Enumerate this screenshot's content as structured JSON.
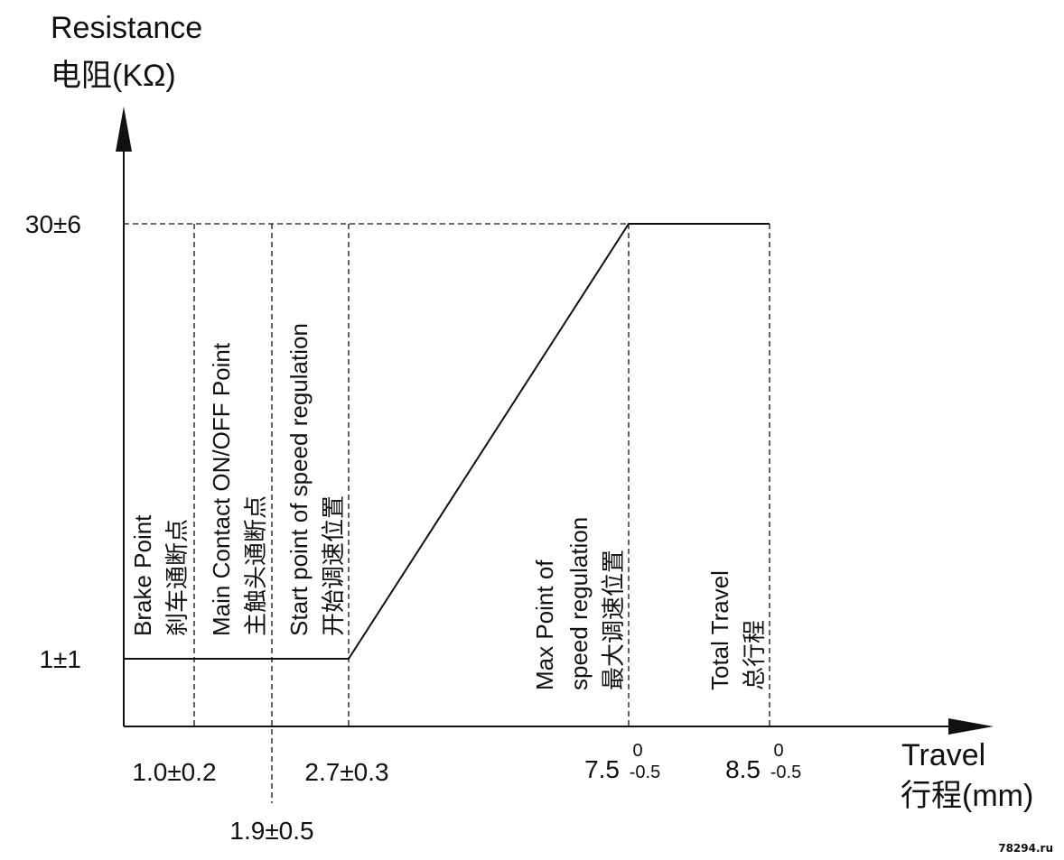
{
  "chart_data": {
    "type": "line",
    "title": "",
    "ylabel": [
      "Resistance",
      "电阻(KΩ)"
    ],
    "xlabel": [
      "Travel",
      "行程(mm)"
    ],
    "series": [
      {
        "x": [
          0,
          2.7,
          7.5,
          8.5
        ],
        "y": [
          1,
          1,
          30,
          30
        ]
      }
    ],
    "y_ticks": [
      {
        "value": 30,
        "label": "30±6"
      },
      {
        "value": 1,
        "label": "1±1"
      }
    ],
    "x_ticks": [
      {
        "value": 1.0,
        "label": "1.0±0.2"
      },
      {
        "value": 1.9,
        "label": "1.9±0.5"
      },
      {
        "value": 2.7,
        "label": "2.7±0.3"
      },
      {
        "value": 7.5,
        "label": "7.5",
        "tol_upper": "0",
        "tol_lower": "-0.5"
      },
      {
        "value": 8.5,
        "label": "8.5",
        "tol_upper": "0",
        "tol_lower": "-0.5"
      }
    ],
    "annotations": [
      {
        "x": 1.0,
        "lines": [
          "Brake Point",
          "刹车通断点"
        ]
      },
      {
        "x": 1.9,
        "lines": [
          "Main Contact ON/OFF Point",
          "主触头通断点"
        ]
      },
      {
        "x": 2.7,
        "lines": [
          "Start point of speed regulation",
          "开始调速位置"
        ]
      },
      {
        "x": 7.5,
        "lines": [
          "Max Point of",
          "speed regulation",
          "最大调速位置"
        ]
      },
      {
        "x": 8.5,
        "lines": [
          "Total Travel",
          "总行程"
        ]
      }
    ],
    "grid": false
  },
  "watermark": "78294.ru",
  "colors": {
    "line": "#111111",
    "background": "#ffffff"
  }
}
